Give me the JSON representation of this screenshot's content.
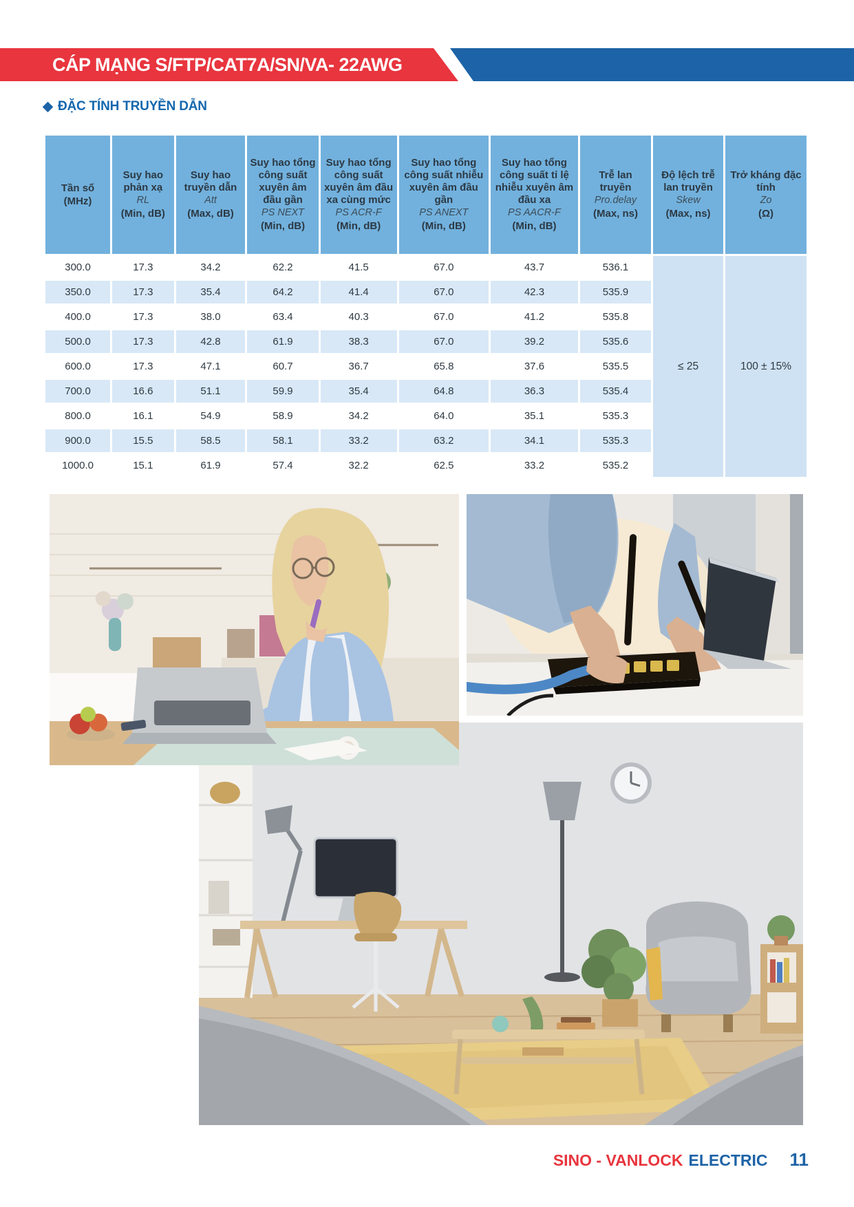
{
  "banner": {
    "title": "CÁP MẠNG S/FTP/CAT7A/SN/VA- 22AWG",
    "red_color": "#e8353e",
    "blue_color": "#1d63a7"
  },
  "section": {
    "bullet": "diamond-bullet",
    "title": "ĐẶC TÍNH TRUYỀN DẪN"
  },
  "table": {
    "columns": [
      {
        "name": "Tần số",
        "sub": "",
        "unit": "(MHz)"
      },
      {
        "name": "Suy hao phản xạ",
        "sub": "RL",
        "unit": "(Min, dB)"
      },
      {
        "name": "Suy hao truyền dẫn",
        "sub": "Att",
        "unit": "(Max, dB)"
      },
      {
        "name": "Suy hao tổng công suất xuyên âm đầu gần",
        "sub": "PS NEXT",
        "unit": "(Min, dB)"
      },
      {
        "name": "Suy hao tổng công suất xuyên âm đầu xa cùng mức",
        "sub": "PS ACR-F",
        "unit": "(Min, dB)"
      },
      {
        "name": "Suy hao tổng công suất nhiễu xuyên âm đầu gần",
        "sub": "PS ANEXT",
        "unit": "(Min, dB)"
      },
      {
        "name": "Suy hao tổng công suất tỉ lệ nhiễu xuyên âm đầu xa",
        "sub": "PS AACR-F",
        "unit": "(Min, dB)"
      },
      {
        "name": "Trễ lan truyền",
        "sub": "Pro.delay",
        "unit": "(Max, ns)"
      },
      {
        "name": "Độ lệch trễ lan truyền",
        "sub": "Skew",
        "unit": "(Max, ns)"
      },
      {
        "name": "Trở kháng đặc tính",
        "sub": "Zo",
        "unit": "(Ω)"
      }
    ],
    "rows": [
      [
        "300.0",
        "17.3",
        "34.2",
        "62.2",
        "41.5",
        "67.0",
        "43.7",
        "536.1"
      ],
      [
        "350.0",
        "17.3",
        "35.4",
        "64.2",
        "41.4",
        "67.0",
        "42.3",
        "535.9"
      ],
      [
        "400.0",
        "17.3",
        "38.0",
        "63.4",
        "40.3",
        "67.0",
        "41.2",
        "535.8"
      ],
      [
        "500.0",
        "17.3",
        "42.8",
        "61.9",
        "38.3",
        "67.0",
        "39.2",
        "535.6"
      ],
      [
        "600.0",
        "17.3",
        "47.1",
        "60.7",
        "36.7",
        "65.8",
        "37.6",
        "535.5"
      ],
      [
        "700.0",
        "16.6",
        "51.1",
        "59.9",
        "35.4",
        "64.8",
        "36.3",
        "535.4"
      ],
      [
        "800.0",
        "16.1",
        "54.9",
        "58.9",
        "34.2",
        "64.0",
        "35.1",
        "535.3"
      ],
      [
        "900.0",
        "15.5",
        "58.5",
        "58.1",
        "33.2",
        "63.2",
        "34.1",
        "535.3"
      ],
      [
        "1000.0",
        "15.1",
        "61.9",
        "57.4",
        "32.2",
        "62.5",
        "33.2",
        "535.2"
      ]
    ],
    "merged": {
      "skew_value": "≤ 25",
      "zo_value": "100 ± 15%"
    },
    "header_bg": "#72b1dd",
    "alt_row_bg": "#d8e8f7",
    "merged_bg": "#cfe2f3"
  },
  "photos": [
    {
      "alt": "Woman working on a laptop in a kitchen"
    },
    {
      "alt": "Hands plugging a blue network cable into a wireless router"
    },
    {
      "alt": "Home office interior with desk, chair and armchair"
    }
  ],
  "footer": {
    "brand_red": "SINO - VANLOCK",
    "brand_blue": "ELECTRIC",
    "page_number": "11"
  }
}
